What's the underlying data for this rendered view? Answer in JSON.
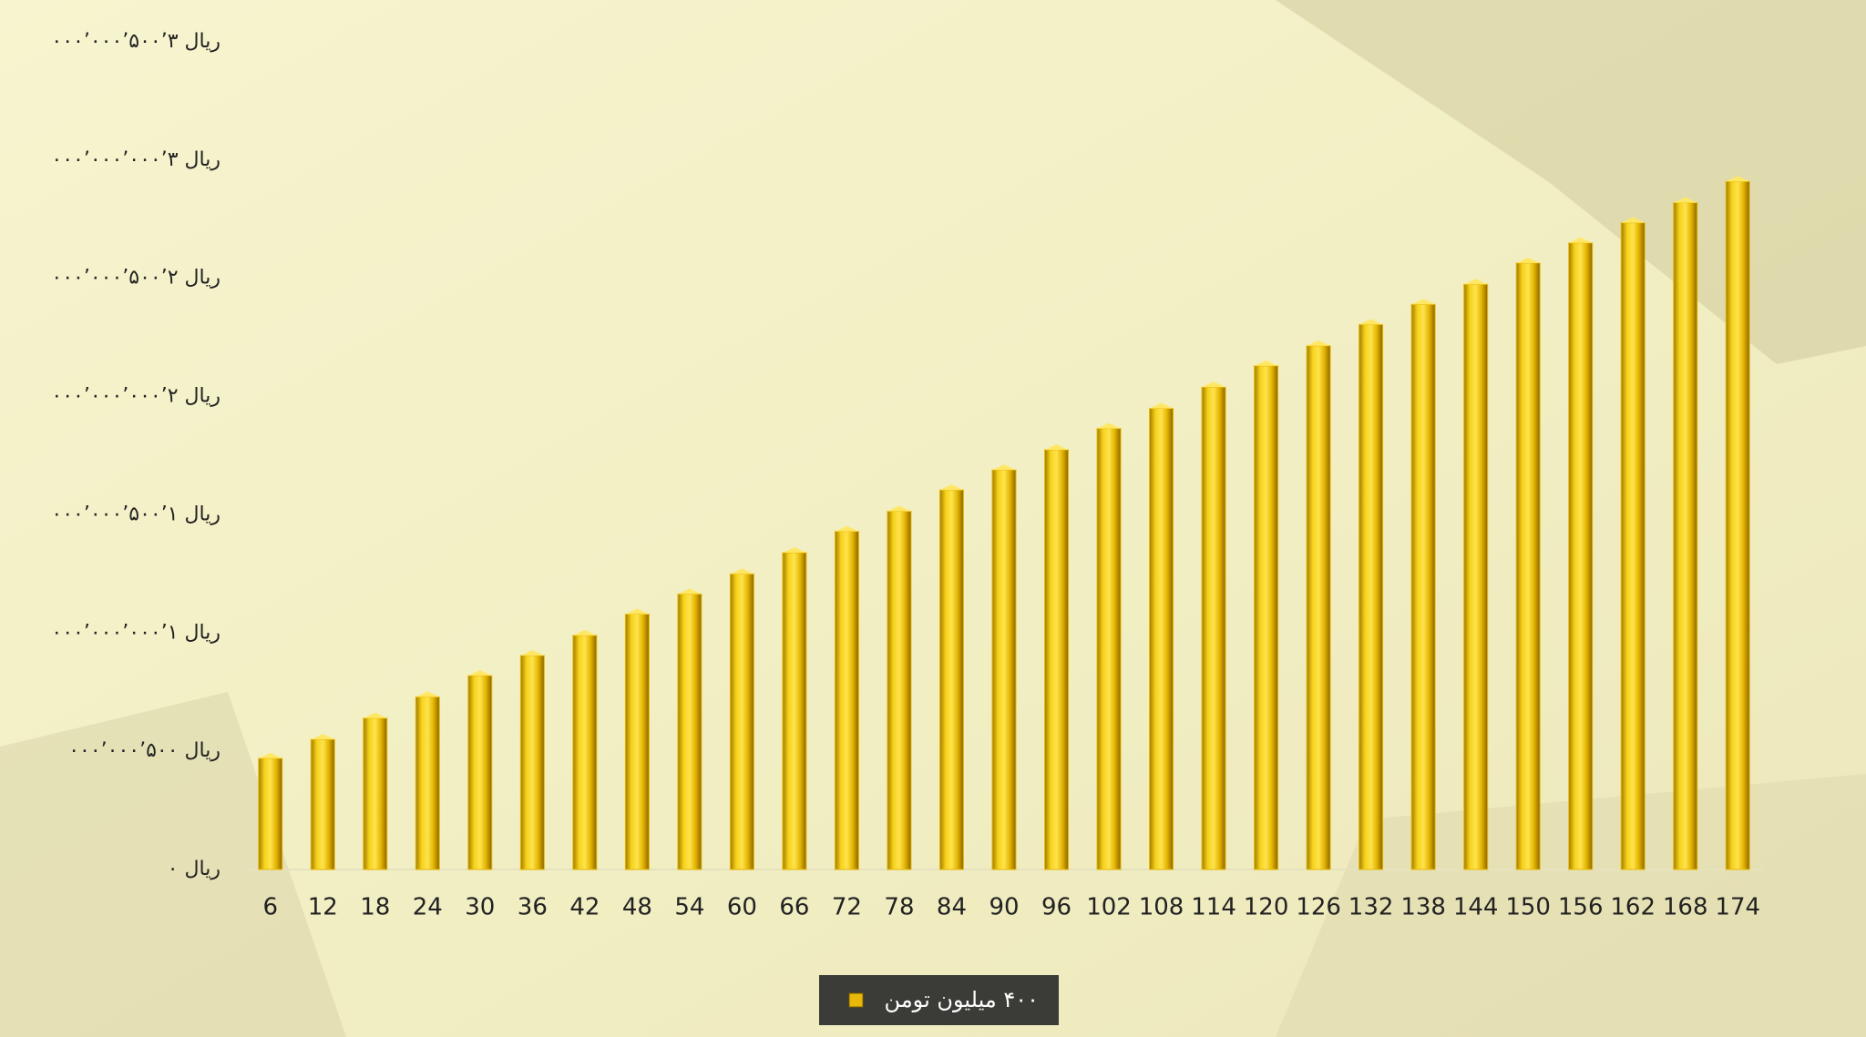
{
  "chart_data": {
    "type": "bar",
    "categories": [
      "6",
      "12",
      "18",
      "24",
      "30",
      "36",
      "42",
      "48",
      "54",
      "60",
      "66",
      "72",
      "78",
      "84",
      "90",
      "96",
      "102",
      "108",
      "114",
      "120",
      "126",
      "132",
      "138",
      "144",
      "150",
      "156",
      "162",
      "168",
      "174"
    ],
    "series": [
      {
        "name": "۴۰۰ میلیون تومن",
        "color": "#e8b90a",
        "values": [
          470000000,
          550000000,
          640000000,
          730000000,
          820000000,
          905000000,
          990000000,
          1080000000,
          1165000000,
          1250000000,
          1340000000,
          1430000000,
          1515000000,
          1605000000,
          1690000000,
          1775000000,
          1865000000,
          1950000000,
          2040000000,
          2130000000,
          2215000000,
          2305000000,
          2390000000,
          2475000000,
          2565000000,
          2650000000,
          2735000000,
          2820000000,
          2910000000
        ]
      }
    ],
    "ylim": [
      0,
      3500000000
    ],
    "yticks": [
      {
        "value": 0,
        "label": "ریال ۰"
      },
      {
        "value": 500000000,
        "label": "ریال ۵۰۰’۰۰۰’۰۰۰"
      },
      {
        "value": 1000000000,
        "label": "ریال ۱’۰۰۰’۰۰۰’۰۰۰"
      },
      {
        "value": 1500000000,
        "label": "ریال ۱’۵۰۰’۰۰۰’۰۰۰"
      },
      {
        "value": 2000000000,
        "label": "ریال ۲’۰۰۰’۰۰۰’۰۰۰"
      },
      {
        "value": 2500000000,
        "label": "ریال ۲’۵۰۰’۰۰۰’۰۰۰"
      },
      {
        "value": 3000000000,
        "label": "ریال ۳’۰۰۰’۰۰۰’۰۰۰"
      },
      {
        "value": 3500000000,
        "label": "ریال ۳’۵۰۰’۰۰۰’۰۰۰"
      }
    ],
    "grid": false,
    "legend": "bottom"
  }
}
